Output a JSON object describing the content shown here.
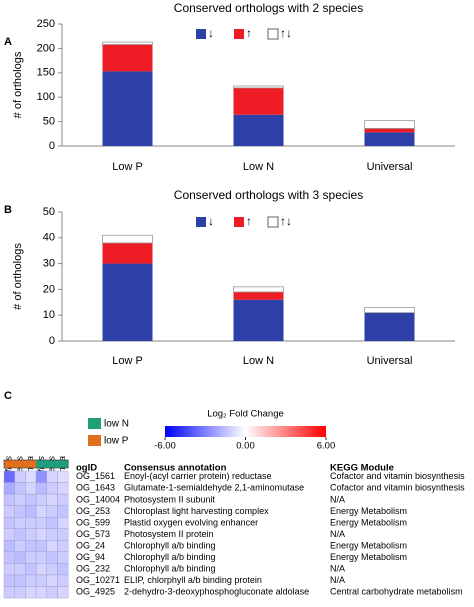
{
  "chart_data": [
    {
      "type": "bar",
      "label": "A",
      "title": "Conserved orthologs with 2 species",
      "y_label": "# of orthologs",
      "categories": [
        "Low P",
        "Low N",
        "Universal"
      ],
      "series": [
        {
          "name": "↓",
          "color": "#2e3fa8",
          "values": [
            153,
            64,
            28
          ]
        },
        {
          "name": "↑",
          "color": "#ee1c24",
          "values": [
            55,
            55,
            8
          ]
        },
        {
          "name": "↑↓",
          "color": "#ffffff",
          "values": [
            5,
            4,
            16
          ]
        }
      ],
      "ylim": [
        0,
        250
      ],
      "yticks": [
        0,
        50,
        100,
        150,
        200,
        250
      ],
      "stacked": true
    },
    {
      "type": "bar",
      "label": "B",
      "title": "Conserved orthologs with 3 species",
      "y_label": "# of orthologs",
      "categories": [
        "Low P",
        "Low N",
        "Universal"
      ],
      "series": [
        {
          "name": "↓",
          "color": "#2e3fa8",
          "values": [
            30,
            16,
            11
          ]
        },
        {
          "name": "↑",
          "color": "#ee1c24",
          "values": [
            8,
            3,
            0
          ]
        },
        {
          "name": "↑↓",
          "color": "#ffffff",
          "values": [
            3,
            2,
            2
          ]
        }
      ],
      "ylim": [
        0,
        50
      ],
      "yticks": [
        0,
        10,
        20,
        30,
        40,
        50
      ],
      "stacked": true
    },
    {
      "type": "heatmap",
      "label": "C",
      "columns": [
        "C. affinis",
        "C. polylepis",
        "G. oceanica",
        "C. affinis",
        "C. polylepis",
        "G. oceanica"
      ],
      "groups": [
        {
          "name": "low N",
          "color": "#1f9e7a"
        },
        {
          "name": "low P",
          "color": "#e0701e"
        }
      ],
      "column_groups": [
        1,
        1,
        1,
        0,
        0,
        0
      ],
      "colorbar_title": "Log₂ Fold Change",
      "clim": [
        -6,
        6
      ],
      "colors": [
        "#0000ff",
        "#ffffff",
        "#ff0000"
      ],
      "colorbar_ticks": [
        {
          "value": -6,
          "label": "-6.00"
        },
        {
          "value": 0,
          "label": "0.00"
        },
        {
          "value": 6,
          "label": "6.00"
        }
      ],
      "table_header": [
        "ogID",
        "Consensus annotation",
        "KEGG Module"
      ],
      "rows": [
        [
          "OG_1561",
          "Enoyl-(acyl carrier protein) reductase",
          "Cofactor and vitamin biosynthesis"
        ],
        [
          "OG_1643",
          "Glutamate-1-semialdehyde 2,1-aminomutase",
          "Cofactor and vitamin biosynthesis"
        ],
        [
          "OG_14004",
          "Photosystem II subunit",
          "N/A"
        ],
        [
          "OG_253",
          "Chloroplast light harvesting complex",
          "Energy Metabolism"
        ],
        [
          "OG_599",
          "Plastid oxygen evolving enhancer",
          "Energy Metabolism"
        ],
        [
          "OG_573",
          "Photosystem II protein",
          "N/A"
        ],
        [
          "OG_24",
          "Chlorophyll a/b binding",
          "Energy Metabolism"
        ],
        [
          "OG_94",
          "Chlorophyll a/b binding",
          "Energy Metabolism"
        ],
        [
          "OG_232",
          "Chlorophyll a/b binding",
          "N/A"
        ],
        [
          "OG_10271",
          "ELIP, chlorphyll a/b binding protein",
          "N/A"
        ],
        [
          "OG_4925",
          "2-dehydro-3-deoxyphosphogluconate aldolase",
          "Central carbohydrate metabolism"
        ]
      ],
      "values": [
        [
          -3.5,
          -1.2,
          -0.8,
          -2.6,
          -1.0,
          -0.8
        ],
        [
          -2.0,
          -1.4,
          -1.0,
          -1.6,
          -1.2,
          -1.0
        ],
        [
          -1.4,
          -1.2,
          -1.4,
          -1.2,
          -1.0,
          -1.2
        ],
        [
          -1.2,
          -1.4,
          -1.6,
          -1.0,
          -1.2,
          -1.4
        ],
        [
          -1.4,
          -1.2,
          -1.2,
          -1.2,
          -1.4,
          -1.0
        ],
        [
          -1.2,
          -1.4,
          -1.2,
          -1.0,
          -1.2,
          -1.2
        ],
        [
          -1.6,
          -1.2,
          -1.4,
          -1.4,
          -1.0,
          -1.2
        ],
        [
          -1.4,
          -1.6,
          -1.2,
          -1.2,
          -1.4,
          -1.2
        ],
        [
          -1.2,
          -1.2,
          -1.4,
          -1.0,
          -1.2,
          -1.4
        ],
        [
          -1.4,
          -1.4,
          -1.2,
          -1.2,
          -1.0,
          -1.2
        ],
        [
          -1.2,
          -1.2,
          -1.0,
          -1.0,
          -1.2,
          -1.0
        ]
      ]
    }
  ]
}
